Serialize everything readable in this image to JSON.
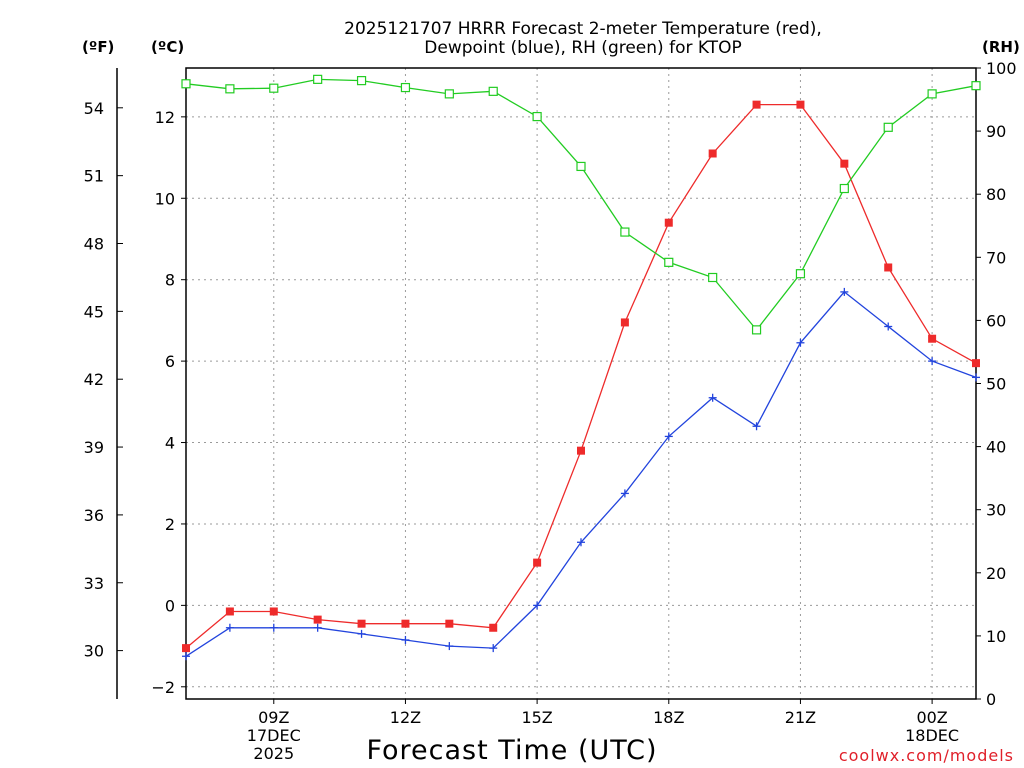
{
  "chart_data": {
    "type": "line",
    "title": "2025121707 HRRR Forecast 2-meter Temperature (red),",
    "subtitle": "Dewpoint (blue), RH (green) for KTOP",
    "xlabel": "Forecast Time (UTC)",
    "credit": "coolwx.com/models",
    "unit_labels": {
      "fahrenheit": "(ºF)",
      "celsius": "(ºC)",
      "rh": "(RH)"
    },
    "x_hours": [
      7,
      8,
      9,
      10,
      11,
      12,
      13,
      14,
      15,
      16,
      17,
      18,
      19,
      20,
      21,
      22,
      23,
      24,
      25
    ],
    "xlim": [
      7,
      25
    ],
    "x_ticks": [
      {
        "hour": 9,
        "lines": [
          "09Z",
          "17DEC",
          "2025"
        ]
      },
      {
        "hour": 12,
        "lines": [
          "12Z"
        ]
      },
      {
        "hour": 15,
        "lines": [
          "15Z"
        ]
      },
      {
        "hour": 18,
        "lines": [
          "18Z"
        ]
      },
      {
        "hour": 21,
        "lines": [
          "21Z"
        ]
      },
      {
        "hour": 24,
        "lines": [
          "00Z",
          "18DEC"
        ]
      }
    ],
    "celsius_axis": {
      "min": -2.3,
      "max": 13.2,
      "ticks": [
        -2,
        0,
        2,
        4,
        6,
        8,
        10,
        12
      ],
      "tick_labels": [
        "−2",
        "0",
        "2",
        "4",
        "6",
        "8",
        "10",
        "12"
      ]
    },
    "fahrenheit_axis": {
      "ticks": [
        30,
        33,
        36,
        39,
        42,
        45,
        48,
        51,
        54
      ],
      "tick_labels": [
        "30",
        "33",
        "36",
        "39",
        "42",
        "45",
        "48",
        "51",
        "54"
      ]
    },
    "rh_axis": {
      "min": 0,
      "max": 100,
      "ticks": [
        0,
        10,
        20,
        30,
        40,
        50,
        60,
        70,
        80,
        90,
        100
      ],
      "tick_labels": [
        "0",
        "10",
        "20",
        "30",
        "40",
        "50",
        "60",
        "70",
        "80",
        "90",
        "100"
      ]
    },
    "series": [
      {
        "name": "2-meter Temperature",
        "axis": "celsius",
        "color": "#ee2b2b",
        "marker": "filled-square",
        "values": [
          -1.05,
          -0.15,
          -0.15,
          -0.35,
          -0.45,
          -0.45,
          -0.45,
          -0.55,
          1.05,
          3.8,
          6.95,
          9.4,
          11.1,
          12.3,
          12.3,
          10.85,
          8.3,
          6.55,
          5.95
        ]
      },
      {
        "name": "Dewpoint",
        "axis": "celsius",
        "color": "#2244dd",
        "marker": "plus",
        "values": [
          -1.25,
          -0.55,
          -0.55,
          -0.55,
          -0.7,
          -0.85,
          -1.0,
          -1.05,
          0.0,
          1.55,
          2.75,
          4.15,
          5.1,
          4.4,
          6.45,
          7.7,
          6.85,
          6.0,
          5.6
        ]
      },
      {
        "name": "RH",
        "axis": "rh",
        "color": "#22cc22",
        "marker": "open-square",
        "values": [
          97.5,
          96.7,
          96.8,
          98.2,
          98.0,
          96.9,
          95.9,
          96.3,
          92.3,
          84.4,
          74.0,
          69.2,
          66.8,
          58.5,
          67.4,
          80.9,
          90.6,
          95.9,
          97.2
        ]
      }
    ],
    "grid": true
  }
}
